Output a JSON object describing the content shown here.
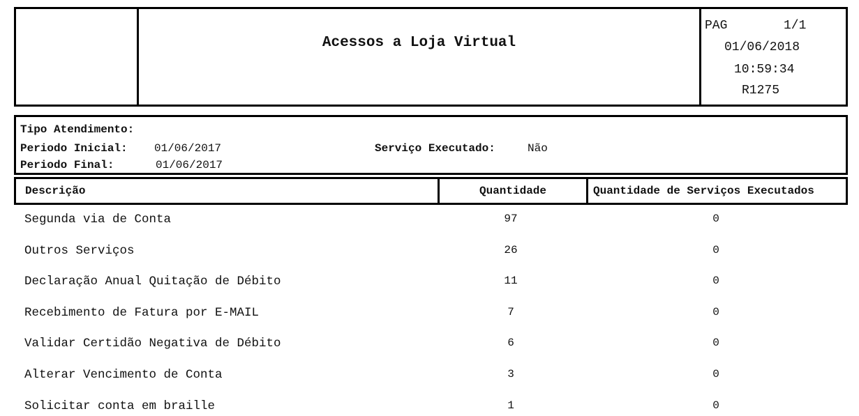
{
  "header": {
    "title": "Acessos a Loja Virtual",
    "page_label": "PAG",
    "page": "1/1",
    "date": "01/06/2018",
    "time": "10:59:34",
    "report_code": "R1275"
  },
  "filters": {
    "tipo_label": "Tipo Atendimento:",
    "inicial_label": "Periodo Inicial:",
    "inicial_value": "01/06/2017",
    "final_label": "Periodo Final:",
    "final_value": "01/06/2017",
    "servico_label": "Serviço Executado:",
    "servico_value": "Não"
  },
  "table": {
    "columns": [
      "Descrição",
      "Quantidade",
      "Quantidade de Serviços Executados"
    ],
    "rows": [
      [
        "Segunda via de Conta",
        "97",
        "0"
      ],
      [
        "Outros Serviços",
        "26",
        "0"
      ],
      [
        "Declaração Anual Quitação de Débito",
        "11",
        "0"
      ],
      [
        "Recebimento de Fatura por E-MAIL",
        "7",
        "0"
      ],
      [
        "Validar Certidão Negativa de Débito",
        "6",
        "0"
      ],
      [
        "Alterar Vencimento de Conta",
        "3",
        "0"
      ],
      [
        "Solicitar conta em braille",
        "1",
        "0"
      ]
    ]
  }
}
